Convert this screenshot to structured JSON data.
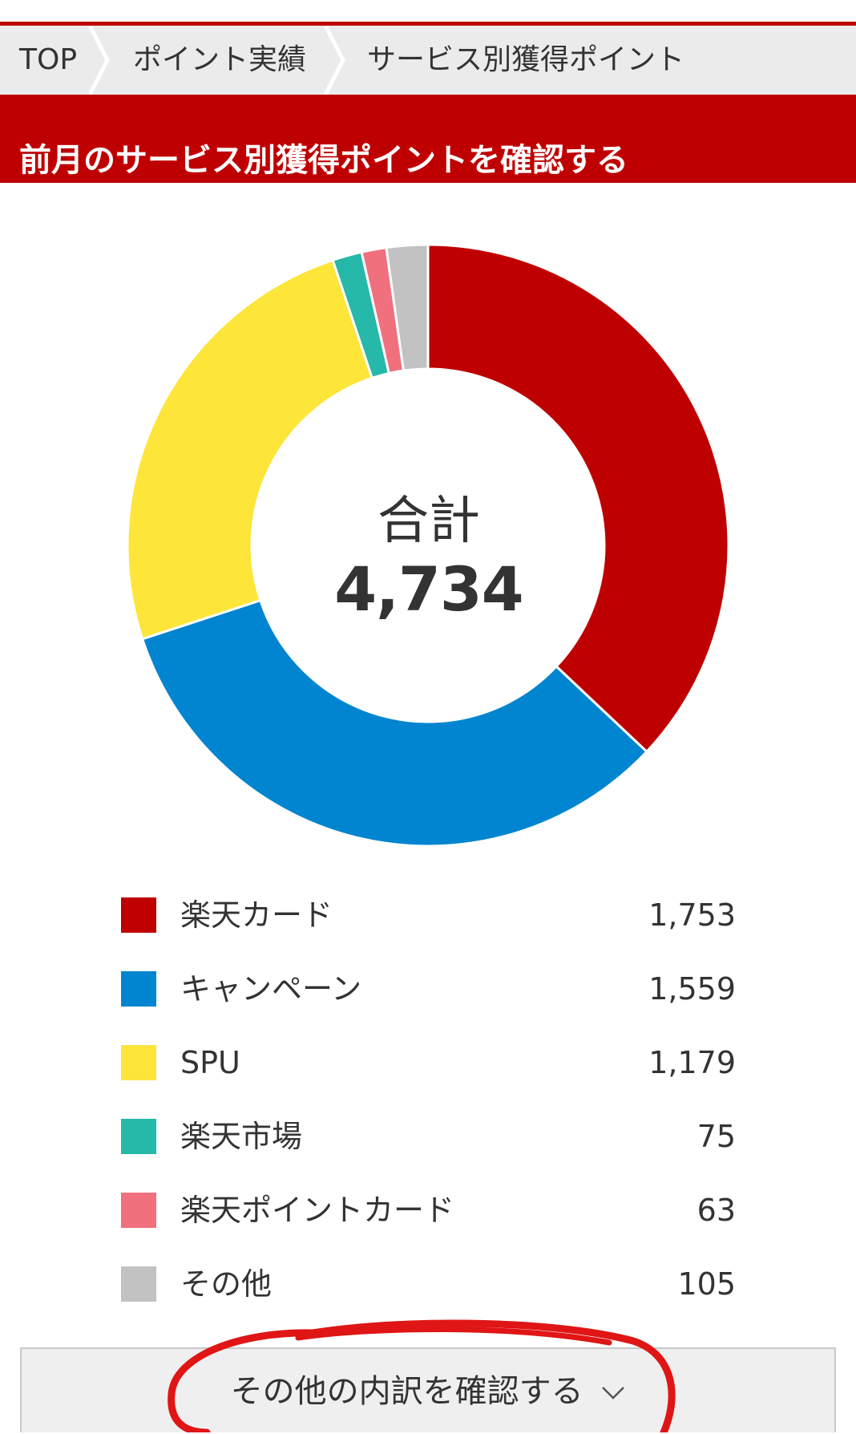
{
  "breadcrumb": {
    "items": [
      "TOP",
      "ポイント実績",
      "サービス別獲得ポイント"
    ]
  },
  "header": {
    "title": "前月のサービス別獲得ポイントを確認する"
  },
  "chart_data": {
    "type": "pie",
    "variant": "donut",
    "center_label": "合計",
    "center_value": "4,734",
    "slices": [
      {
        "label": "楽天カード",
        "value": 1753,
        "display": "1,753",
        "color": "#bf0000"
      },
      {
        "label": "キャンペーン",
        "value": 1559,
        "display": "1,559",
        "color": "#0285d0"
      },
      {
        "label": "SPU",
        "value": 1179,
        "display": "1,179",
        "color": "#fde53a"
      },
      {
        "label": "楽天市場",
        "value": 75,
        "display": "75",
        "color": "#26b8a8"
      },
      {
        "label": "楽天ポイントカード",
        "value": 63,
        "display": "63",
        "color": "#f0707e"
      },
      {
        "label": "その他",
        "value": 105,
        "display": "105",
        "color": "#c2c2c2"
      }
    ],
    "legend_placement": "bottom"
  },
  "more_button": {
    "label": "その他の内訳を確認する"
  },
  "icons": {
    "breadcrumb_separator": "chevron-right-icon",
    "more_button": "chevron-down-icon"
  },
  "colors": {
    "brand": "#bf0000",
    "annotation": "#e01515"
  }
}
